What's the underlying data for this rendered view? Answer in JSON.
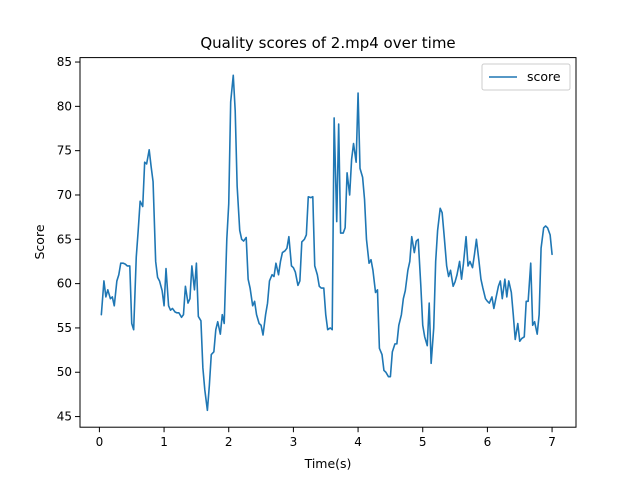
{
  "chart_data": {
    "type": "line",
    "title": "Quality scores of 2.mp4 over time",
    "xlabel": "Time(s)",
    "ylabel": "Score",
    "xlim": [
      -0.3,
      7.37
    ],
    "ylim": [
      43.8,
      85.5
    ],
    "xticks": [
      0,
      1,
      2,
      3,
      4,
      5,
      6,
      7
    ],
    "yticks": [
      45,
      50,
      55,
      60,
      65,
      70,
      75,
      80,
      85
    ],
    "grid": false,
    "legend_position": "top-right",
    "series": [
      {
        "name": "score",
        "color": "#1f77b4",
        "points": [
          [
            0.03,
            56.5
          ],
          [
            0.07,
            60.3
          ],
          [
            0.1,
            58.5
          ],
          [
            0.13,
            59.3
          ],
          [
            0.17,
            58.3
          ],
          [
            0.2,
            58.5
          ],
          [
            0.23,
            57.5
          ],
          [
            0.27,
            60.3
          ],
          [
            0.3,
            61.0
          ],
          [
            0.33,
            62.3
          ],
          [
            0.37,
            62.3
          ],
          [
            0.4,
            62.2
          ],
          [
            0.43,
            62.0
          ],
          [
            0.47,
            62.0
          ],
          [
            0.5,
            55.5
          ],
          [
            0.53,
            54.8
          ],
          [
            0.57,
            63.0
          ],
          [
            0.6,
            66.0
          ],
          [
            0.63,
            69.3
          ],
          [
            0.67,
            68.7
          ],
          [
            0.7,
            73.7
          ],
          [
            0.73,
            73.5
          ],
          [
            0.77,
            75.1
          ],
          [
            0.8,
            73.2
          ],
          [
            0.83,
            71.5
          ],
          [
            0.87,
            62.5
          ],
          [
            0.9,
            60.7
          ],
          [
            0.93,
            60.3
          ],
          [
            0.97,
            59.2
          ],
          [
            1.0,
            57.5
          ],
          [
            1.03,
            61.7
          ],
          [
            1.07,
            57.5
          ],
          [
            1.1,
            57.0
          ],
          [
            1.13,
            57.2
          ],
          [
            1.17,
            56.8
          ],
          [
            1.2,
            56.7
          ],
          [
            1.23,
            56.7
          ],
          [
            1.27,
            56.2
          ],
          [
            1.3,
            56.5
          ],
          [
            1.33,
            59.7
          ],
          [
            1.37,
            57.8
          ],
          [
            1.4,
            58.3
          ],
          [
            1.43,
            62.0
          ],
          [
            1.47,
            59.3
          ],
          [
            1.5,
            62.3
          ],
          [
            1.53,
            56.3
          ],
          [
            1.57,
            55.8
          ],
          [
            1.6,
            50.5
          ],
          [
            1.63,
            48.0
          ],
          [
            1.67,
            45.7
          ],
          [
            1.7,
            48.5
          ],
          [
            1.73,
            52.0
          ],
          [
            1.77,
            52.3
          ],
          [
            1.8,
            54.8
          ],
          [
            1.83,
            55.7
          ],
          [
            1.87,
            54.3
          ],
          [
            1.9,
            56.5
          ],
          [
            1.93,
            55.5
          ],
          [
            1.97,
            65.0
          ],
          [
            2.0,
            69.0
          ],
          [
            2.03,
            80.5
          ],
          [
            2.07,
            83.5
          ],
          [
            2.1,
            79.5
          ],
          [
            2.13,
            71.0
          ],
          [
            2.17,
            66.0
          ],
          [
            2.2,
            65.0
          ],
          [
            2.23,
            64.8
          ],
          [
            2.27,
            65.2
          ],
          [
            2.3,
            60.5
          ],
          [
            2.33,
            59.5
          ],
          [
            2.37,
            57.5
          ],
          [
            2.4,
            58.0
          ],
          [
            2.43,
            56.5
          ],
          [
            2.47,
            55.5
          ],
          [
            2.5,
            55.3
          ],
          [
            2.53,
            54.2
          ],
          [
            2.57,
            56.5
          ],
          [
            2.6,
            57.8
          ],
          [
            2.63,
            60.3
          ],
          [
            2.67,
            61.0
          ],
          [
            2.7,
            60.8
          ],
          [
            2.73,
            62.3
          ],
          [
            2.77,
            61.0
          ],
          [
            2.8,
            62.5
          ],
          [
            2.83,
            63.5
          ],
          [
            2.87,
            63.7
          ],
          [
            2.9,
            64.0
          ],
          [
            2.93,
            65.3
          ],
          [
            2.97,
            62.0
          ],
          [
            3.0,
            61.8
          ],
          [
            3.03,
            61.3
          ],
          [
            3.07,
            59.8
          ],
          [
            3.1,
            60.3
          ],
          [
            3.13,
            64.7
          ],
          [
            3.17,
            65.0
          ],
          [
            3.2,
            65.5
          ],
          [
            3.23,
            69.8
          ],
          [
            3.27,
            69.7
          ],
          [
            3.3,
            69.8
          ],
          [
            3.33,
            62.0
          ],
          [
            3.37,
            61.0
          ],
          [
            3.4,
            59.7
          ],
          [
            3.43,
            59.5
          ],
          [
            3.47,
            59.5
          ],
          [
            3.5,
            56.5
          ],
          [
            3.53,
            54.8
          ],
          [
            3.57,
            55.0
          ],
          [
            3.6,
            54.8
          ],
          [
            3.63,
            78.7
          ],
          [
            3.67,
            67.0
          ],
          [
            3.7,
            78.0
          ],
          [
            3.73,
            65.7
          ],
          [
            3.77,
            65.7
          ],
          [
            3.8,
            66.3
          ],
          [
            3.83,
            72.5
          ],
          [
            3.87,
            70.0
          ],
          [
            3.9,
            74.0
          ],
          [
            3.93,
            75.8
          ],
          [
            3.97,
            73.7
          ],
          [
            4.0,
            81.5
          ],
          [
            4.03,
            73.0
          ],
          [
            4.07,
            72.0
          ],
          [
            4.1,
            69.5
          ],
          [
            4.13,
            65.0
          ],
          [
            4.17,
            62.3
          ],
          [
            4.2,
            62.7
          ],
          [
            4.23,
            61.5
          ],
          [
            4.27,
            59.0
          ],
          [
            4.3,
            59.3
          ],
          [
            4.33,
            52.7
          ],
          [
            4.37,
            52.0
          ],
          [
            4.4,
            50.2
          ],
          [
            4.43,
            50.0
          ],
          [
            4.47,
            49.5
          ],
          [
            4.5,
            49.5
          ],
          [
            4.53,
            52.3
          ],
          [
            4.57,
            53.2
          ],
          [
            4.6,
            53.2
          ],
          [
            4.63,
            55.3
          ],
          [
            4.67,
            56.5
          ],
          [
            4.7,
            58.3
          ],
          [
            4.73,
            59.2
          ],
          [
            4.77,
            61.5
          ],
          [
            4.8,
            62.5
          ],
          [
            4.83,
            65.3
          ],
          [
            4.87,
            63.5
          ],
          [
            4.9,
            64.8
          ],
          [
            4.93,
            65.0
          ],
          [
            4.97,
            59.8
          ],
          [
            5.0,
            55.3
          ],
          [
            5.03,
            54.0
          ],
          [
            5.07,
            53.0
          ],
          [
            5.1,
            57.8
          ],
          [
            5.13,
            51.0
          ],
          [
            5.17,
            55.0
          ],
          [
            5.2,
            62.5
          ],
          [
            5.23,
            66.0
          ],
          [
            5.27,
            68.5
          ],
          [
            5.3,
            68.0
          ],
          [
            5.33,
            65.5
          ],
          [
            5.37,
            62.0
          ],
          [
            5.4,
            60.8
          ],
          [
            5.43,
            61.5
          ],
          [
            5.47,
            59.7
          ],
          [
            5.5,
            60.2
          ],
          [
            5.53,
            61.0
          ],
          [
            5.57,
            62.5
          ],
          [
            5.6,
            60.5
          ],
          [
            5.63,
            62.3
          ],
          [
            5.67,
            65.3
          ],
          [
            5.7,
            62.0
          ],
          [
            5.73,
            62.5
          ],
          [
            5.77,
            61.8
          ],
          [
            5.8,
            63.3
          ],
          [
            5.83,
            65.0
          ],
          [
            5.87,
            62.5
          ],
          [
            5.9,
            60.5
          ],
          [
            5.93,
            59.5
          ],
          [
            5.97,
            58.3
          ],
          [
            6.0,
            58.0
          ],
          [
            6.03,
            57.8
          ],
          [
            6.07,
            58.5
          ],
          [
            6.1,
            57.2
          ],
          [
            6.13,
            58.3
          ],
          [
            6.17,
            59.7
          ],
          [
            6.2,
            60.3
          ],
          [
            6.23,
            58.3
          ],
          [
            6.27,
            60.5
          ],
          [
            6.3,
            58.5
          ],
          [
            6.33,
            60.3
          ],
          [
            6.37,
            59.0
          ],
          [
            6.4,
            56.5
          ],
          [
            6.43,
            53.7
          ],
          [
            6.47,
            55.5
          ],
          [
            6.5,
            53.5
          ],
          [
            6.53,
            53.8
          ],
          [
            6.57,
            54.0
          ],
          [
            6.6,
            58.0
          ],
          [
            6.63,
            58.0
          ],
          [
            6.67,
            62.3
          ],
          [
            6.7,
            55.3
          ],
          [
            6.73,
            55.7
          ],
          [
            6.77,
            54.3
          ],
          [
            6.8,
            56.5
          ],
          [
            6.83,
            64.0
          ],
          [
            6.87,
            66.3
          ],
          [
            6.9,
            66.5
          ],
          [
            6.93,
            66.3
          ],
          [
            6.97,
            65.5
          ],
          [
            7.0,
            63.3
          ]
        ]
      }
    ]
  }
}
